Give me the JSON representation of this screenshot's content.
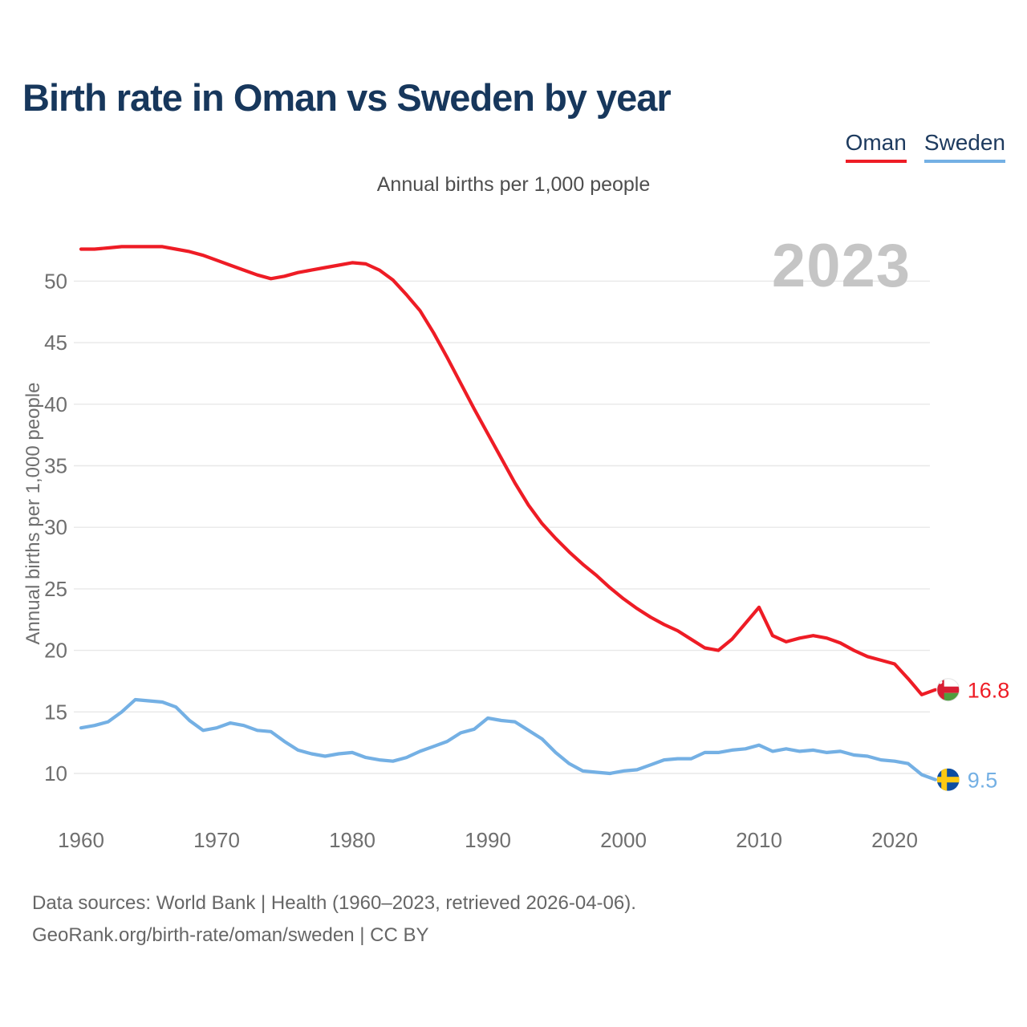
{
  "page": {
    "title": "Birth rate in Oman vs Sweden by year",
    "subtitle": "Annual births per 1,000 people",
    "watermark": "2023",
    "y_axis_label": "Annual births per 1,000 people",
    "footer_line1": "Data sources: World Bank | Health (1960–2023, retrieved 2026-04-06).",
    "footer_line2": "GeoRank.org/birth-rate/oman/sweden | CC BY"
  },
  "legend": {
    "items": [
      {
        "label": "Oman",
        "color": "#ee1c25"
      },
      {
        "label": "Sweden",
        "color": "#74b0e4"
      }
    ]
  },
  "chart_data": {
    "type": "line",
    "title": "Birth rate in Oman vs Sweden by year",
    "subtitle": "Annual births per 1,000 people",
    "ylabel": "Annual births per 1,000 people",
    "xlabel": "",
    "grid": "horizontal",
    "legend_position": "top-right",
    "x_ticks": [
      1960,
      1970,
      1980,
      1990,
      2000,
      2010,
      2020
    ],
    "y_ticks": [
      10,
      15,
      20,
      25,
      30,
      35,
      40,
      45,
      50
    ],
    "ylim": [
      8,
      54
    ],
    "xlim": [
      1960,
      2023
    ],
    "x": [
      1960,
      1961,
      1962,
      1963,
      1964,
      1965,
      1966,
      1967,
      1968,
      1969,
      1970,
      1971,
      1972,
      1973,
      1974,
      1975,
      1976,
      1977,
      1978,
      1979,
      1980,
      1981,
      1982,
      1983,
      1984,
      1985,
      1986,
      1987,
      1988,
      1989,
      1990,
      1991,
      1992,
      1993,
      1994,
      1995,
      1996,
      1997,
      1998,
      1999,
      2000,
      2001,
      2002,
      2003,
      2004,
      2005,
      2006,
      2007,
      2008,
      2009,
      2010,
      2011,
      2012,
      2013,
      2014,
      2015,
      2016,
      2017,
      2018,
      2019,
      2020,
      2021,
      2022,
      2023
    ],
    "series": [
      {
        "name": "Oman",
        "color": "#ee1c25",
        "flag": "oman",
        "end_label": "16.8",
        "end_value": 16.8,
        "values": [
          52.6,
          52.6,
          52.7,
          52.8,
          52.8,
          52.8,
          52.8,
          52.6,
          52.4,
          52.1,
          51.7,
          51.3,
          50.9,
          50.5,
          50.2,
          50.4,
          50.7,
          50.9,
          51.1,
          51.3,
          51.5,
          51.4,
          50.9,
          50.1,
          48.9,
          47.6,
          45.8,
          43.8,
          41.7,
          39.6,
          37.6,
          35.6,
          33.6,
          31.8,
          30.3,
          29.1,
          28.0,
          27.0,
          26.1,
          25.1,
          24.2,
          23.4,
          22.7,
          22.1,
          21.6,
          20.9,
          20.2,
          20.0,
          20.9,
          22.2,
          23.5,
          21.2,
          20.7,
          21.0,
          21.2,
          21.0,
          20.6,
          20.0,
          19.5,
          19.2,
          18.9,
          17.7,
          16.4,
          16.8
        ]
      },
      {
        "name": "Sweden",
        "color": "#74b0e4",
        "flag": "sweden",
        "end_label": "9.5",
        "end_value": 9.5,
        "values": [
          13.7,
          13.9,
          14.2,
          15.0,
          16.0,
          15.9,
          15.8,
          15.4,
          14.3,
          13.5,
          13.7,
          14.1,
          13.9,
          13.5,
          13.4,
          12.6,
          11.9,
          11.6,
          11.4,
          11.6,
          11.7,
          11.3,
          11.1,
          11.0,
          11.3,
          11.8,
          12.2,
          12.6,
          13.3,
          13.6,
          14.5,
          14.3,
          14.2,
          13.5,
          12.8,
          11.7,
          10.8,
          10.2,
          10.1,
          10.0,
          10.2,
          10.3,
          10.7,
          11.1,
          11.2,
          11.2,
          11.7,
          11.7,
          11.9,
          12.0,
          12.3,
          11.8,
          12.0,
          11.8,
          11.9,
          11.7,
          11.8,
          11.5,
          11.4,
          11.1,
          11.0,
          10.8,
          9.9,
          9.5
        ]
      }
    ]
  },
  "colors": {
    "title": "#17375c",
    "gridline": "#e8e8e8",
    "tick_text": "#6f6f6f",
    "watermark": "#c5c5c5",
    "oman_flag_red": "#d81e34",
    "oman_flag_green": "#4f9e3f",
    "sweden_flag_blue": "#0d4da1",
    "sweden_flag_yellow": "#fdc913"
  }
}
